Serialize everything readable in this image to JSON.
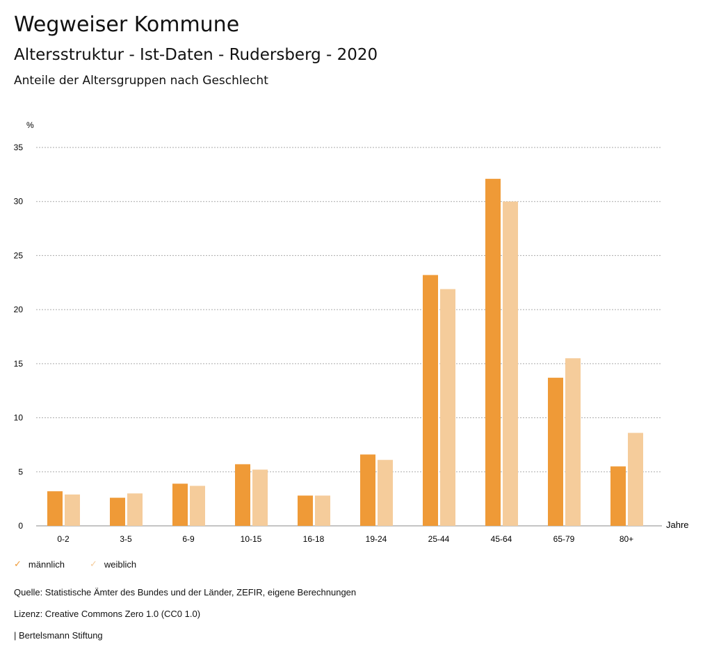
{
  "header": {
    "title": "Wegweiser Kommune",
    "subtitle": "Altersstruktur - Ist-Daten - Rudersberg - 2020",
    "chart_title": "Anteile der Altersgruppen nach Geschlecht"
  },
  "chart_data": {
    "type": "bar",
    "title": "Anteile der Altersgruppen nach Geschlecht",
    "xlabel": "Jahre",
    "ylabel": "%",
    "ylim": [
      0,
      35
    ],
    "yticks": [
      0,
      5,
      10,
      15,
      20,
      25,
      30,
      35
    ],
    "grid": true,
    "legend": "bottom-left",
    "categories": [
      "0-2",
      "3-5",
      "6-9",
      "10-15",
      "16-18",
      "19-24",
      "25-44",
      "45-64",
      "65-79",
      "80+"
    ],
    "series": [
      {
        "name": "männlich",
        "color": "#ef9a37",
        "values": [
          3.2,
          2.6,
          3.9,
          5.7,
          2.8,
          6.6,
          23.2,
          32.1,
          13.7,
          5.5
        ]
      },
      {
        "name": "weiblich",
        "color": "#f5cc9b",
        "values": [
          2.9,
          3.0,
          3.7,
          5.2,
          2.8,
          6.1,
          21.9,
          30.0,
          15.5,
          8.6
        ]
      }
    ]
  },
  "footer": {
    "source": "Quelle: Statistische Ämter des Bundes und der Länder, ZEFIR, eigene Berechnungen",
    "license": "Lizenz: Creative Commons Zero 1.0 (CC0 1.0)",
    "brand": "| Bertelsmann Stiftung"
  }
}
